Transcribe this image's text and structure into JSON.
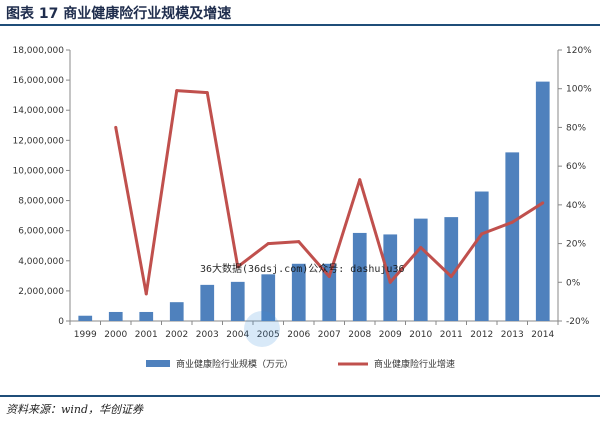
{
  "figure": {
    "title": "图表 17   商业健康险行业规模及增速",
    "source": "资料来源：wind，华创证券"
  },
  "watermark": {
    "text": "36大数据(36dsj.com)公众号: dashuju36",
    "logo_text": "36大数据"
  },
  "colors": {
    "bar": "#4f81bd",
    "line": "#c0504d",
    "rule": "#1f4e79"
  },
  "chart_data": {
    "type": "bar",
    "categories": [
      "1999",
      "2000",
      "2001",
      "2002",
      "2003",
      "2004",
      "2005",
      "2006",
      "2007",
      "2008",
      "2009",
      "2010",
      "2011",
      "2012",
      "2013",
      "2014"
    ],
    "series": [
      {
        "name": "商业健康险行业规模（万元）",
        "type": "bar",
        "axis": "left",
        "values": [
          350000,
          600000,
          600000,
          1250000,
          2400000,
          2600000,
          3100000,
          3800000,
          3800000,
          5850000,
          5750000,
          6800000,
          6900000,
          8600000,
          11200000,
          15900000
        ]
      },
      {
        "name": "商业健康险行业增速",
        "type": "line",
        "axis": "right",
        "values": [
          null,
          80,
          -6,
          99,
          98,
          8,
          20,
          21,
          3,
          53,
          0,
          18,
          3,
          25,
          31,
          41
        ]
      }
    ],
    "y_left": {
      "min": 0,
      "max": 18000000,
      "step": 2000000,
      "ticks": [
        "0",
        "2,000,000",
        "4,000,000",
        "6,000,000",
        "8,000,000",
        "10,000,000",
        "12,000,000",
        "14,000,000",
        "16,000,000",
        "18,000,000"
      ]
    },
    "y_right": {
      "min": -20,
      "max": 120,
      "step": 20,
      "ticks": [
        "-20%",
        "0%",
        "20%",
        "40%",
        "60%",
        "80%",
        "100%",
        "120%"
      ]
    },
    "grid": false,
    "legend_position": "bottom"
  }
}
